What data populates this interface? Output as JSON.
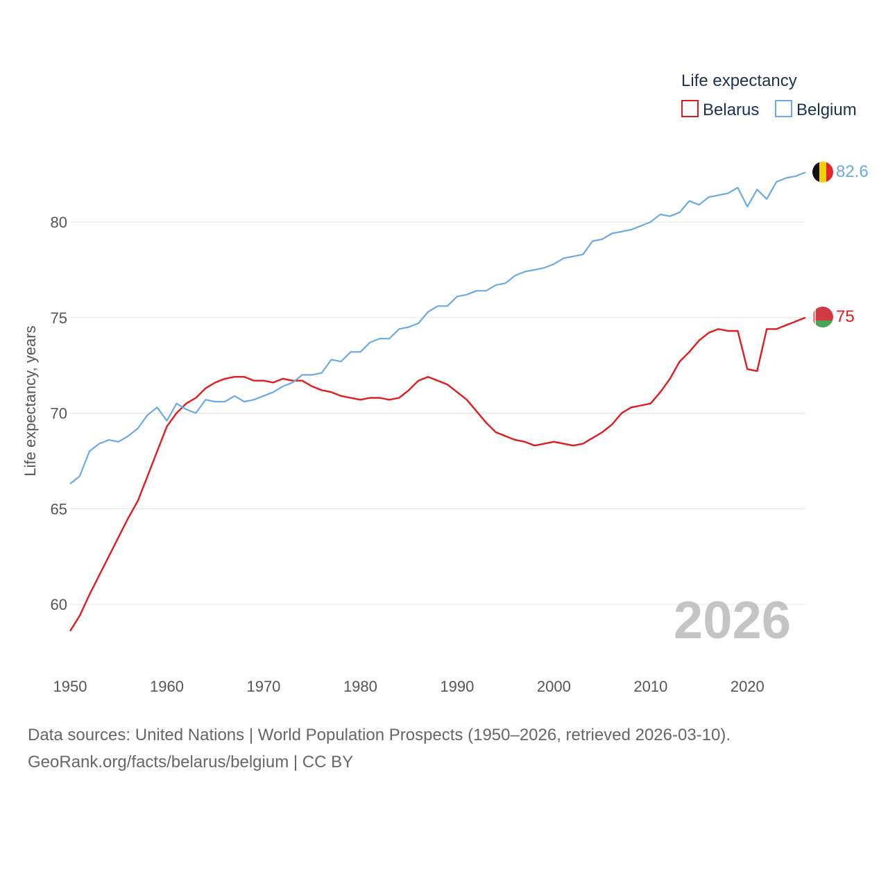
{
  "chart_data": {
    "type": "line",
    "title": "",
    "xlabel": "",
    "ylabel": "Life expectancy, years",
    "xlim": [
      1950,
      2026
    ],
    "ylim": [
      57.5,
      84
    ],
    "y_ticks": [
      60,
      65,
      70,
      75,
      80
    ],
    "x_ticks": [
      1950,
      1960,
      1970,
      1980,
      1990,
      2000,
      2010,
      2020
    ],
    "grid": true,
    "legend": {
      "title": "Life expectancy",
      "position": "top-right"
    },
    "year_label": "2026",
    "x": [
      1950,
      1951,
      1952,
      1953,
      1954,
      1955,
      1956,
      1957,
      1958,
      1959,
      1960,
      1961,
      1962,
      1963,
      1964,
      1965,
      1966,
      1967,
      1968,
      1969,
      1970,
      1971,
      1972,
      1973,
      1974,
      1975,
      1976,
      1977,
      1978,
      1979,
      1980,
      1981,
      1982,
      1983,
      1984,
      1985,
      1986,
      1987,
      1988,
      1989,
      1990,
      1991,
      1992,
      1993,
      1994,
      1995,
      1996,
      1997,
      1998,
      1999,
      2000,
      2001,
      2002,
      2003,
      2004,
      2005,
      2006,
      2007,
      2008,
      2009,
      2010,
      2011,
      2012,
      2013,
      2014,
      2015,
      2016,
      2017,
      2018,
      2019,
      2020,
      2021,
      2022,
      2023,
      2024,
      2025,
      2026
    ],
    "series": [
      {
        "name": "Belarus",
        "color": "#e31a1c",
        "flag": "belarus-flag",
        "end_label": "75",
        "values": [
          58.6,
          59.4,
          60.5,
          61.5,
          62.5,
          63.5,
          64.5,
          65.4,
          66.7,
          68.0,
          69.3,
          70.0,
          70.5,
          70.8,
          71.3,
          71.6,
          71.8,
          71.9,
          71.9,
          71.7,
          71.7,
          71.6,
          71.8,
          71.7,
          71.7,
          71.4,
          71.2,
          71.1,
          70.9,
          70.8,
          70.7,
          70.8,
          70.8,
          70.7,
          70.8,
          71.2,
          71.7,
          71.9,
          71.7,
          71.5,
          71.1,
          70.7,
          70.1,
          69.5,
          69.0,
          68.8,
          68.6,
          68.5,
          68.3,
          68.4,
          68.5,
          68.4,
          68.3,
          68.4,
          68.7,
          69.0,
          69.4,
          70.0,
          70.3,
          70.4,
          70.5,
          71.1,
          71.8,
          72.7,
          73.2,
          73.8,
          74.2,
          74.4,
          74.3,
          74.3,
          72.3,
          72.2,
          74.4,
          74.4,
          74.6,
          74.8,
          75.0
        ]
      },
      {
        "name": "Belgium",
        "color": "#6aa9e5",
        "flag": "belgium-flag",
        "end_label": "82.6",
        "values": [
          66.3,
          66.7,
          68.0,
          68.4,
          68.6,
          68.5,
          68.8,
          69.2,
          69.9,
          70.3,
          69.6,
          70.5,
          70.2,
          70.0,
          70.7,
          70.6,
          70.6,
          70.9,
          70.6,
          70.7,
          70.9,
          71.1,
          71.4,
          71.6,
          72.0,
          72.0,
          72.1,
          72.8,
          72.7,
          73.2,
          73.2,
          73.7,
          73.9,
          73.9,
          74.4,
          74.5,
          74.7,
          75.3,
          75.6,
          75.6,
          76.1,
          76.2,
          76.4,
          76.4,
          76.7,
          76.8,
          77.2,
          77.4,
          77.5,
          77.6,
          77.8,
          78.1,
          78.2,
          78.3,
          79.0,
          79.1,
          79.4,
          79.5,
          79.6,
          79.8,
          80.0,
          80.4,
          80.3,
          80.5,
          81.1,
          80.9,
          81.3,
          81.4,
          81.5,
          81.8,
          80.8,
          81.7,
          81.2,
          82.1,
          82.3,
          82.4,
          82.6
        ]
      }
    ]
  },
  "footer": {
    "sources_line": "Data sources: United Nations | World Population Prospects (1950–2026, retrieved 2026-03-10).",
    "credit_line": "GeoRank.org/facts/belarus/belgium | CC BY"
  }
}
